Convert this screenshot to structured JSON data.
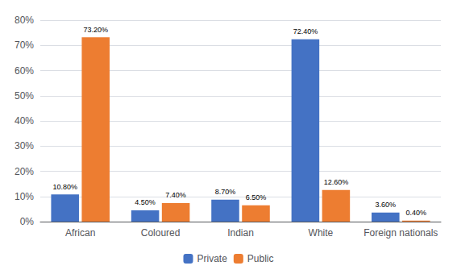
{
  "chart_data": {
    "type": "bar",
    "categories": [
      "African",
      "Coloured",
      "Indian",
      "White",
      "Foreign nationals"
    ],
    "series": [
      {
        "name": "Private",
        "color": "#4472C4",
        "values": [
          10.8,
          4.5,
          8.7,
          72.4,
          3.6
        ],
        "value_labels": [
          "10.80%",
          "4.50%",
          "8.70%",
          "72.40%",
          "3.60%"
        ]
      },
      {
        "name": "Public",
        "color": "#ED7D31",
        "values": [
          73.2,
          7.4,
          6.5,
          12.6,
          0.4
        ],
        "value_labels": [
          "73.20%",
          "7.40%",
          "6.50%",
          "12.60%",
          "0.40%"
        ]
      }
    ],
    "ylim": [
      0,
      80
    ],
    "yticks": [
      {
        "value": 0,
        "label": "0%"
      },
      {
        "value": 10,
        "label": "10%"
      },
      {
        "value": 20,
        "label": "20%"
      },
      {
        "value": 30,
        "label": "30%"
      },
      {
        "value": 40,
        "label": "40%"
      },
      {
        "value": 50,
        "label": "50%"
      },
      {
        "value": 60,
        "label": "60%"
      },
      {
        "value": 70,
        "label": "70%"
      },
      {
        "value": 80,
        "label": "80%"
      }
    ],
    "grid": true,
    "legend": "bottom",
    "data_labels": true
  }
}
